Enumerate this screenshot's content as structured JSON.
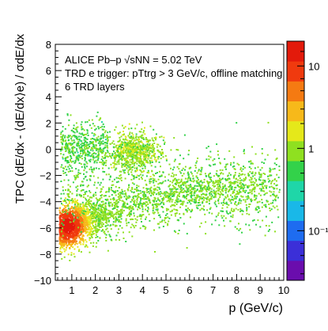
{
  "chart_data": {
    "type": "heatmap",
    "title": "",
    "xlabel": "p (GeV/c)",
    "ylabel": "TPC (dE/dx - ⟨dE/dx⟩e) / σdE/dx",
    "xlim": [
      0.3,
      10
    ],
    "ylim": [
      -10,
      8
    ],
    "x_ticks": [
      1,
      2,
      3,
      4,
      5,
      6,
      7,
      8,
      9,
      10
    ],
    "x_tick_labels": [
      "1",
      "2",
      "3",
      "4",
      "5",
      "6",
      "7",
      "8",
      "9",
      "10"
    ],
    "y_ticks": [
      -10,
      -8,
      -6,
      -4,
      -2,
      0,
      2,
      4,
      6,
      8
    ],
    "y_tick_labels": [
      "−10",
      "−8",
      "−6",
      "−4",
      "−2",
      "0",
      "2",
      "4",
      "6",
      "8"
    ],
    "grid": false,
    "colorbar": {
      "scale": "log",
      "range": [
        0.025,
        20
      ],
      "tick_labels": [
        "10⁻¹",
        "1",
        "10"
      ],
      "tick_values": [
        0.1,
        1,
        10
      ]
    },
    "annotations": [
      "ALICE Pb–p √sNN = 5.02 TeV",
      "TRD e trigger: pTtrg > 3 GeV/c, offline matching",
      "6 TRD layers"
    ],
    "populations": [
      {
        "x_center": 0.8,
        "x_sigma": 0.35,
        "y_center": -5.8,
        "y_sigma": 0.9,
        "peak": 15,
        "trend": "rises toward -3 at high p"
      },
      {
        "x_center": 3.6,
        "x_sigma": 0.6,
        "y_center": -0.2,
        "y_sigma": 0.8,
        "peak": 1.0,
        "trend": "electron band near 0"
      },
      {
        "x_center": 1.0,
        "x_sigma": 0.5,
        "y_center": 0.3,
        "y_sigma": 0.9,
        "peak": 0.5,
        "trend": "low-p electron band near 0"
      }
    ]
  },
  "colors": {
    "axis": "#000000",
    "palette": [
      "#6a0dad",
      "#3b2fd8",
      "#1e6cf0",
      "#19b8e8",
      "#1fd6a8",
      "#33d24a",
      "#8fe020",
      "#e5e81a",
      "#f7b91a",
      "#f57a12",
      "#f03a0e",
      "#e31a0b"
    ]
  }
}
